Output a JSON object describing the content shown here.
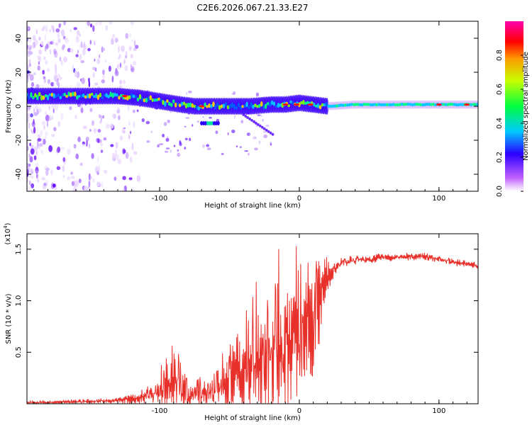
{
  "title": "C2E6.2026.067.21.33.E27",
  "chart_data": [
    {
      "type": "heatmap",
      "name": "spectrogram",
      "xlabel": "Height of straight line (km)",
      "ylabel": "Frequency (Hz)",
      "xlim": [
        -195,
        128
      ],
      "ylim": [
        -50,
        50
      ],
      "xticks": [
        -100,
        0,
        100
      ],
      "yticks": [
        -40,
        -20,
        0,
        20,
        40
      ],
      "ridge": [
        {
          "x": -190,
          "y": 6
        },
        {
          "x": -170,
          "y": 6
        },
        {
          "x": -150,
          "y": 6
        },
        {
          "x": -130,
          "y": 6
        },
        {
          "x": -115,
          "y": 5
        },
        {
          "x": -100,
          "y": 3
        },
        {
          "x": -85,
          "y": 1
        },
        {
          "x": -75,
          "y": 0
        },
        {
          "x": -65,
          "y": 0
        },
        {
          "x": -50,
          "y": 0
        },
        {
          "x": -35,
          "y": 0
        },
        {
          "x": -20,
          "y": 1
        },
        {
          "x": -10,
          "y": 1
        },
        {
          "x": 0,
          "y": 2
        },
        {
          "x": 10,
          "y": 1
        },
        {
          "x": 20,
          "y": 0
        },
        {
          "x": 40,
          "y": 1
        },
        {
          "x": 70,
          "y": 1
        },
        {
          "x": 100,
          "y": 1
        },
        {
          "x": 128,
          "y": 1
        }
      ],
      "colorbar": {
        "label": "Normalized spectral amplitude",
        "range": [
          0,
          1
        ],
        "ticks": [
          "0.0",
          "0.2",
          "0.4",
          "0.6",
          "0.8"
        ]
      }
    },
    {
      "type": "line",
      "name": "snr",
      "xlabel": "Height of straight line (km)",
      "ylabel": "SNR (10 * v/v)",
      "multiplier_label": "(x10",
      "multiplier_exp": "4",
      "xlim": [
        -195,
        128
      ],
      "ylim": [
        0,
        1.65
      ],
      "xticks": [
        -100,
        0,
        100
      ],
      "yticks": [
        0.5,
        1.0,
        1.5
      ],
      "ytick_labels": [
        "0.5",
        "1.0",
        "1.5"
      ],
      "envelope": [
        {
          "x": -195,
          "base": 0.01,
          "amp": 0.02
        },
        {
          "x": -130,
          "base": 0.03,
          "amp": 0.04
        },
        {
          "x": -115,
          "base": 0.06,
          "amp": 0.08
        },
        {
          "x": -100,
          "base": 0.1,
          "amp": 0.22
        },
        {
          "x": -90,
          "base": 0.15,
          "amp": 0.45
        },
        {
          "x": -80,
          "base": 0.08,
          "amp": 0.2
        },
        {
          "x": -65,
          "base": 0.1,
          "amp": 0.12
        },
        {
          "x": -50,
          "base": 0.2,
          "amp": 0.4
        },
        {
          "x": -35,
          "base": 0.35,
          "amp": 0.7
        },
        {
          "x": -20,
          "base": 0.45,
          "amp": 0.9
        },
        {
          "x": -10,
          "base": 0.55,
          "amp": 0.95
        },
        {
          "x": 0,
          "base": 0.65,
          "amp": 0.85
        },
        {
          "x": 10,
          "base": 0.8,
          "amp": 0.8
        },
        {
          "x": 20,
          "base": 1.2,
          "amp": 0.25
        },
        {
          "x": 30,
          "base": 1.38,
          "amp": 0.06
        },
        {
          "x": 60,
          "base": 1.42,
          "amp": 0.05
        },
        {
          "x": 90,
          "base": 1.43,
          "amp": 0.05
        },
        {
          "x": 110,
          "base": 1.38,
          "amp": 0.05
        },
        {
          "x": 128,
          "base": 1.34,
          "amp": 0.05
        }
      ],
      "line_color": "#e8302a"
    }
  ]
}
